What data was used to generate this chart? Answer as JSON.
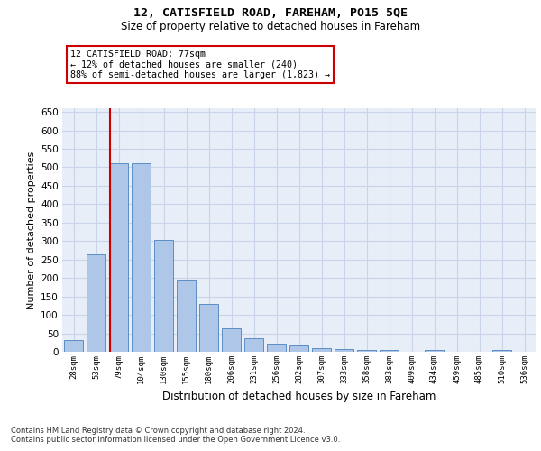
{
  "title1": "12, CATISFIELD ROAD, FAREHAM, PO15 5QE",
  "title2": "Size of property relative to detached houses in Fareham",
  "xlabel": "Distribution of detached houses by size in Fareham",
  "ylabel": "Number of detached properties",
  "categories": [
    "28sqm",
    "53sqm",
    "79sqm",
    "104sqm",
    "130sqm",
    "155sqm",
    "180sqm",
    "206sqm",
    "231sqm",
    "256sqm",
    "282sqm",
    "307sqm",
    "333sqm",
    "358sqm",
    "383sqm",
    "409sqm",
    "434sqm",
    "459sqm",
    "485sqm",
    "510sqm",
    "536sqm"
  ],
  "values": [
    32,
    264,
    512,
    510,
    303,
    195,
    130,
    64,
    37,
    22,
    16,
    10,
    8,
    5,
    5,
    0,
    5,
    0,
    0,
    5,
    0
  ],
  "bar_color": "#aec6e8",
  "bar_edge_color": "#5b8ec4",
  "grid_color": "#c8d4e8",
  "background_color": "#e8eef8",
  "vline_color": "#cc0000",
  "vline_x": 1.6,
  "annotation_text": "12 CATISFIELD ROAD: 77sqm\n← 12% of detached houses are smaller (240)\n88% of semi-detached houses are larger (1,823) →",
  "annotation_box_facecolor": "#ffffff",
  "annotation_box_edgecolor": "#cc0000",
  "ylim": [
    0,
    660
  ],
  "yticks": [
    0,
    50,
    100,
    150,
    200,
    250,
    300,
    350,
    400,
    450,
    500,
    550,
    600,
    650
  ],
  "footer1": "Contains HM Land Registry data © Crown copyright and database right 2024.",
  "footer2": "Contains public sector information licensed under the Open Government Licence v3.0."
}
